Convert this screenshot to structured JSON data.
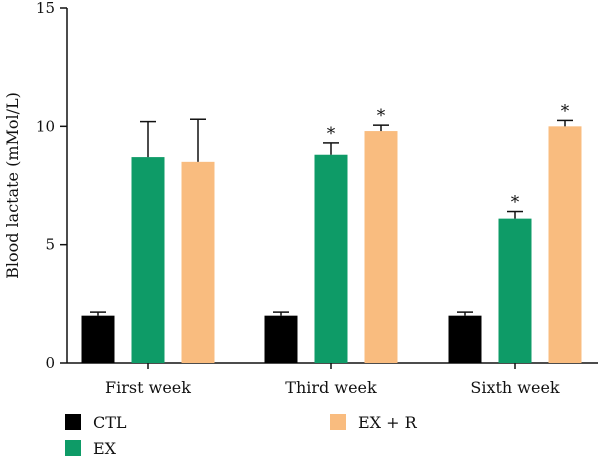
{
  "chart_data": {
    "type": "bar",
    "title": "",
    "xlabel": "",
    "ylabel": "Blood lactate (mMol/L)",
    "ylim": [
      0,
      15
    ],
    "yticks": [
      0,
      5,
      10,
      15
    ],
    "grid": false,
    "categories": [
      "First week",
      "Third week",
      "Sixth week"
    ],
    "series": [
      {
        "name": "CTL",
        "color": "#000000",
        "values": [
          2.0,
          2.0,
          2.0
        ],
        "errors": [
          0.15,
          0.15,
          0.15
        ],
        "significance": [
          "",
          "",
          ""
        ]
      },
      {
        "name": "EX",
        "color": "#0e9b67",
        "values": [
          8.7,
          8.8,
          6.1
        ],
        "errors": [
          1.5,
          0.5,
          0.3
        ],
        "significance": [
          "",
          "*",
          "*"
        ]
      },
      {
        "name": "EX + R",
        "color": "#f9bc7f",
        "values": [
          8.5,
          9.8,
          10.0
        ],
        "errors": [
          1.8,
          0.25,
          0.25
        ],
        "significance": [
          "",
          "*",
          "*"
        ]
      }
    ],
    "legend_placement": "bottom"
  }
}
